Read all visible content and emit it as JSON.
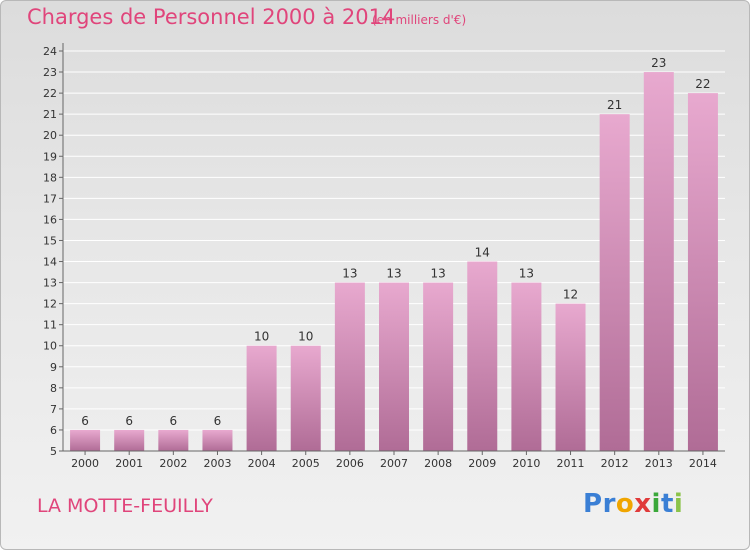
{
  "title": "Charges de Personnel 2000 à 2014",
  "subtitle": "(en milliers d'€)",
  "place": "LA MOTTE-FEUILLY",
  "logo": {
    "letters": [
      "P",
      "r",
      "o",
      "x",
      "i",
      "t",
      "i"
    ],
    "colors": [
      "#3a7fd5",
      "#3a7fd5",
      "#f0a500",
      "#e03a3a",
      "#3aa83a",
      "#3a7fd5",
      "#8bc34a"
    ]
  },
  "colors": {
    "accent": "#e0457b",
    "bar_top": "#e8a9cf",
    "bar_bottom": "#b06c96",
    "grid": "#ffffff",
    "axis": "#666666"
  },
  "chart_data": {
    "type": "bar",
    "categories": [
      "2000",
      "2001",
      "2002",
      "2003",
      "2004",
      "2005",
      "2006",
      "2007",
      "2008",
      "2009",
      "2010",
      "2011",
      "2012",
      "2013",
      "2014"
    ],
    "values": [
      6,
      6,
      6,
      6,
      10,
      10,
      13,
      13,
      13,
      14,
      13,
      12,
      21,
      23,
      22
    ],
    "ylim": [
      5,
      24
    ],
    "yticks": [
      5,
      6,
      7,
      8,
      9,
      10,
      11,
      12,
      13,
      14,
      15,
      16,
      17,
      18,
      19,
      20,
      21,
      22,
      23,
      24
    ],
    "grid": true,
    "legend": "none"
  }
}
